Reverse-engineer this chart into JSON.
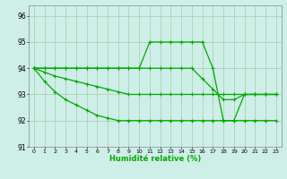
{
  "xlabel": "Humidité relative (%)",
  "bg_color": "#ceeee8",
  "grid_color": "#aaccaa",
  "line_color": "#00aa00",
  "xlim": [
    -0.5,
    23.5
  ],
  "ylim": [
    91.0,
    96.4
  ],
  "yticks": [
    91,
    92,
    93,
    94,
    95,
    96
  ],
  "xticks": [
    0,
    1,
    2,
    3,
    4,
    5,
    6,
    7,
    8,
    9,
    10,
    11,
    12,
    13,
    14,
    15,
    16,
    17,
    18,
    19,
    20,
    21,
    22,
    23
  ],
  "lines": [
    [
      94,
      94,
      94,
      94,
      94,
      94,
      94,
      94,
      94,
      94,
      94,
      95,
      95,
      95,
      95,
      95,
      95,
      94,
      92,
      92,
      93,
      93,
      93,
      93
    ],
    [
      94,
      94,
      94,
      94,
      94,
      94,
      94,
      94,
      94,
      94,
      94,
      94,
      94,
      94,
      94,
      94,
      93.6,
      93.2,
      92.8,
      92.8,
      93.0,
      93.0,
      93.0,
      93.0
    ],
    [
      94,
      93.85,
      93.7,
      93.6,
      93.5,
      93.4,
      93.3,
      93.2,
      93.1,
      93.0,
      93.0,
      93.0,
      93.0,
      93.0,
      93.0,
      93.0,
      93.0,
      93.0,
      93.0,
      93.0,
      93.0,
      93.0,
      93.0,
      93.0
    ],
    [
      94,
      93.5,
      93.1,
      92.8,
      92.6,
      92.4,
      92.2,
      92.1,
      92.0,
      92.0,
      92.0,
      92.0,
      92.0,
      92.0,
      92.0,
      92.0,
      92.0,
      92.0,
      92.0,
      92.0,
      92.0,
      92.0,
      92.0,
      92.0
    ]
  ]
}
